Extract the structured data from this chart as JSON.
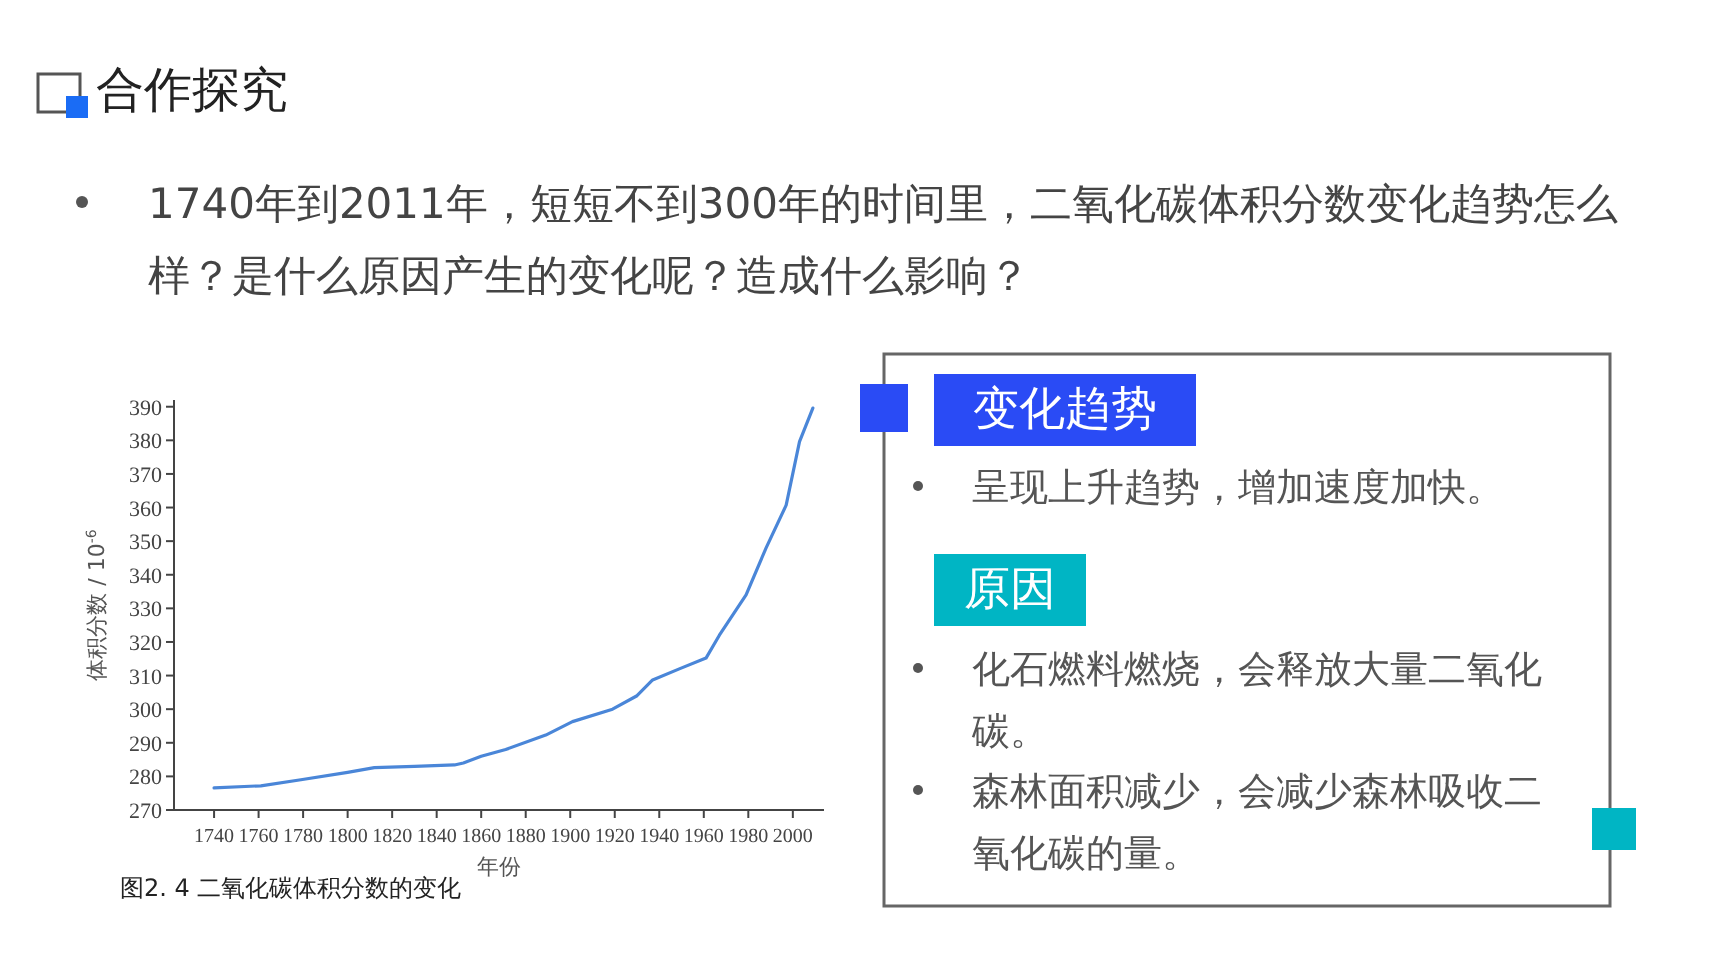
{
  "chart_data": {
    "type": "line",
    "title": "合作探究",
    "subtitle": "1740年到2011年，短短不到300年的时间里，二氧化碳体积分数变化趋势怎么样？是什么原因产生的变化呢？造成什么影响？",
    "xlabel": "年份",
    "ylabel": "体积分数 / 10$^{-6}$",
    "x": [
      1740,
      1761,
      1779,
      1800,
      1812,
      1830,
      1848,
      1852,
      1860,
      1871,
      1889,
      1901,
      1919,
      1930,
      1937,
      1949,
      1961,
      1967,
      1979,
      1988,
      1997,
      2003,
      2009
    ],
    "series": [
      {
        "color": "#4a86d8",
        "values": [
          276.6,
          277.2,
          279,
          281.2,
          282.6,
          283,
          283.4,
          284,
          286,
          288,
          292.3,
          296.3,
          300,
          304,
          308.7,
          312,
          315.2,
          322,
          334,
          348,
          360.7,
          379.6,
          389.6
        ]
      }
    ],
    "xlim": [
      1722,
      2014
    ],
    "xticks": [
      1740,
      1760,
      1780,
      1800,
      1820,
      1840,
      1860,
      1880,
      1900,
      1920,
      1940,
      1960,
      1980,
      2000
    ],
    "ylim": [
      270,
      392
    ],
    "yticks": [
      270,
      280,
      290,
      300,
      310,
      320,
      330,
      340,
      350,
      360,
      370,
      380,
      390
    ],
    "grid": false,
    "marker": "none",
    "line_style": "solid",
    "annotations": [
      "图2. 4  二氧化碳体积分数的变化",
      "变化趋势",
      "呈现上升趋势，增加速度加快。",
      "原因",
      "化石燃料燃烧，会释放大量二氧化碳。",
      "森林面积减少，会减少森林吸收二氧化碳的量。"
    ]
  }
}
